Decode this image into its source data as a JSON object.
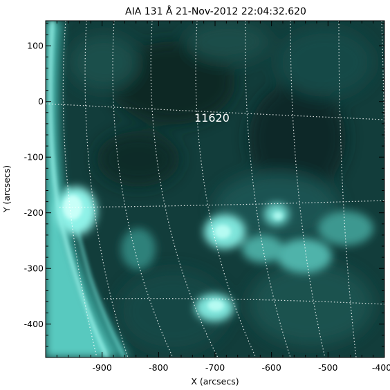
{
  "title": "AIA 131 Å 21-Nov-2012 22:04:32.620",
  "annotation": "11620",
  "chart_data": {
    "type": "heatmap",
    "title": "AIA 131 Å 21-Nov-2012 22:04:32.620",
    "xlabel": "X (arcsecs)",
    "ylabel": "Y (arcsecs)",
    "xlim": [
      -1000,
      -400
    ],
    "ylim": [
      -460,
      145
    ],
    "x_ticks": [
      "-900",
      "-800",
      "-700",
      "-600",
      "-500",
      "-400"
    ],
    "x_tick_values": [
      -900,
      -800,
      -700,
      -600,
      -500,
      -400
    ],
    "y_ticks": [
      "100",
      "0",
      "-100",
      "-200",
      "-300",
      "-400"
    ],
    "y_tick_values": [
      100,
      0,
      -100,
      -200,
      -300,
      -400
    ],
    "colormap": "teal (SDO/AIA 131)",
    "grid": "heliographic longitude/latitude, dotted white",
    "annotation": "11620"
  },
  "colors": {
    "background": "#ffffff",
    "image_dark": "#0c2b2b",
    "image_mid": "#1f5f5c",
    "image_bright": "#9ffcf2",
    "grid": "#ffffff"
  }
}
